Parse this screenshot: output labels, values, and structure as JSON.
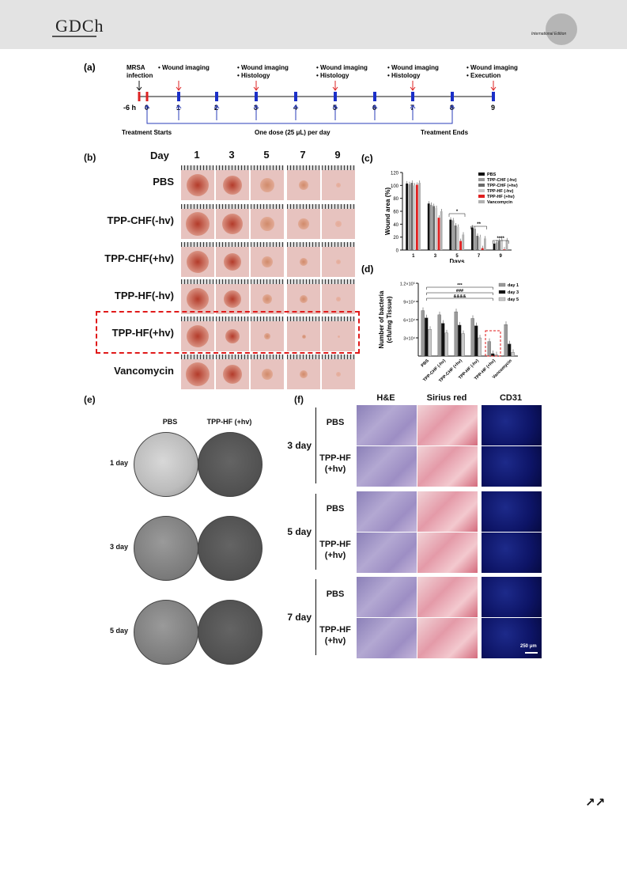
{
  "header": {
    "logo": "GDCh",
    "edition": "International Edition"
  },
  "footer": {
    "arrows": "↗↗"
  },
  "a": {
    "label": "(a)",
    "top_labels": [
      "MRSA\ninfection",
      "• Wound imaging",
      "• Wound imaging\n• Histology",
      "• Wound imaging\n• Histology",
      "• Wound imaging\n• Histology",
      "• Wound imaging\n• Execution"
    ],
    "ticks": [
      "-6 h",
      "0",
      "1",
      "2",
      "3",
      "4",
      "5",
      "6",
      "7",
      "8",
      "9"
    ],
    "bottom_left": "Treatment Starts",
    "bottom_mid": "One dose (25 μL) per day",
    "bottom_right": "Treatment Ends"
  },
  "b": {
    "label": "(b)",
    "day_label": "Day",
    "days": [
      "1",
      "3",
      "5",
      "7",
      "9"
    ],
    "groups": [
      "PBS",
      "TPP-CHF(-hv)",
      "TPP-CHF(+hv)",
      "TPP-HF(-hv)",
      "TPP-HF(+hv)",
      "Vancomycin"
    ]
  },
  "c": {
    "label": "(c)",
    "chart_data": {
      "type": "bar",
      "ylabel": "Wound area (%)",
      "xlabel": "Days",
      "categories": [
        "1",
        "3",
        "5",
        "7",
        "9"
      ],
      "yticks": [
        "0",
        "20",
        "40",
        "60",
        "80",
        "100",
        "120"
      ],
      "ylim": [
        0,
        120
      ],
      "legend_position": "top-right",
      "series": [
        {
          "name": "PBS",
          "color": "#111111",
          "values": [
            103,
            72,
            47,
            35,
            10
          ]
        },
        {
          "name": "TPP-CHF (-hv)",
          "color": "#9a9a9a",
          "values": [
            102,
            70,
            46,
            33,
            12
          ]
        },
        {
          "name": "TPP-CHF (+hv)",
          "color": "#6a6a6a",
          "values": [
            104,
            68,
            38,
            22,
            14
          ]
        },
        {
          "name": "TPP-HF (-hv)",
          "color": "#c8c8c8",
          "values": [
            100,
            65,
            36,
            20,
            16
          ]
        },
        {
          "name": "TPP-HF (+hv)",
          "color": "#e02020",
          "values": [
            101,
            50,
            14,
            3,
            1
          ]
        },
        {
          "name": "Vancomycin",
          "color": "#b0b0b0",
          "values": [
            104,
            60,
            24,
            18,
            15
          ]
        }
      ],
      "annotations": [
        "*",
        "**",
        "****"
      ]
    }
  },
  "d": {
    "label": "(d)",
    "chart_data": {
      "type": "bar",
      "ylabel": "Number of bacteria\n(cfu/mg Tissue)",
      "yticks": [
        "3×10⁴",
        "6×10⁴",
        "9×10⁴",
        "1.2×10⁵"
      ],
      "ylim": [
        0,
        120000
      ],
      "categories": [
        "PBS",
        "TPP-CHF (-hv)",
        "TPP-CHF (+hv)",
        "TPP-HF (-hv)",
        "TPP-HF (+hv)",
        "Vancomycin"
      ],
      "legend_position": "top-right",
      "series": [
        {
          "name": "day 1",
          "color": "#9a9a9a",
          "values": [
            75000,
            68000,
            73000,
            62000,
            24000,
            52000
          ]
        },
        {
          "name": "day 3",
          "color": "#111111",
          "values": [
            63000,
            54000,
            51000,
            50000,
            4000,
            20000
          ]
        },
        {
          "name": "day 5",
          "color": "#c8c8c8",
          "values": [
            44000,
            38000,
            37000,
            30000,
            2000,
            6000
          ]
        }
      ],
      "annotations": [
        "***",
        "###",
        "&&&&"
      ]
    }
  },
  "e": {
    "label": "(e)",
    "cols": [
      "PBS",
      "TPP-HF (+hv)"
    ],
    "rows": [
      "1 day",
      "3 day",
      "5 day"
    ]
  },
  "f": {
    "label": "(f)",
    "cols": [
      "H&E",
      "Sirius red",
      "CD31"
    ],
    "days": [
      "3 day",
      "5 day",
      "7 day"
    ],
    "groups": [
      "PBS",
      "TPP-HF\n(+hv)"
    ],
    "scale": "250 μm"
  }
}
